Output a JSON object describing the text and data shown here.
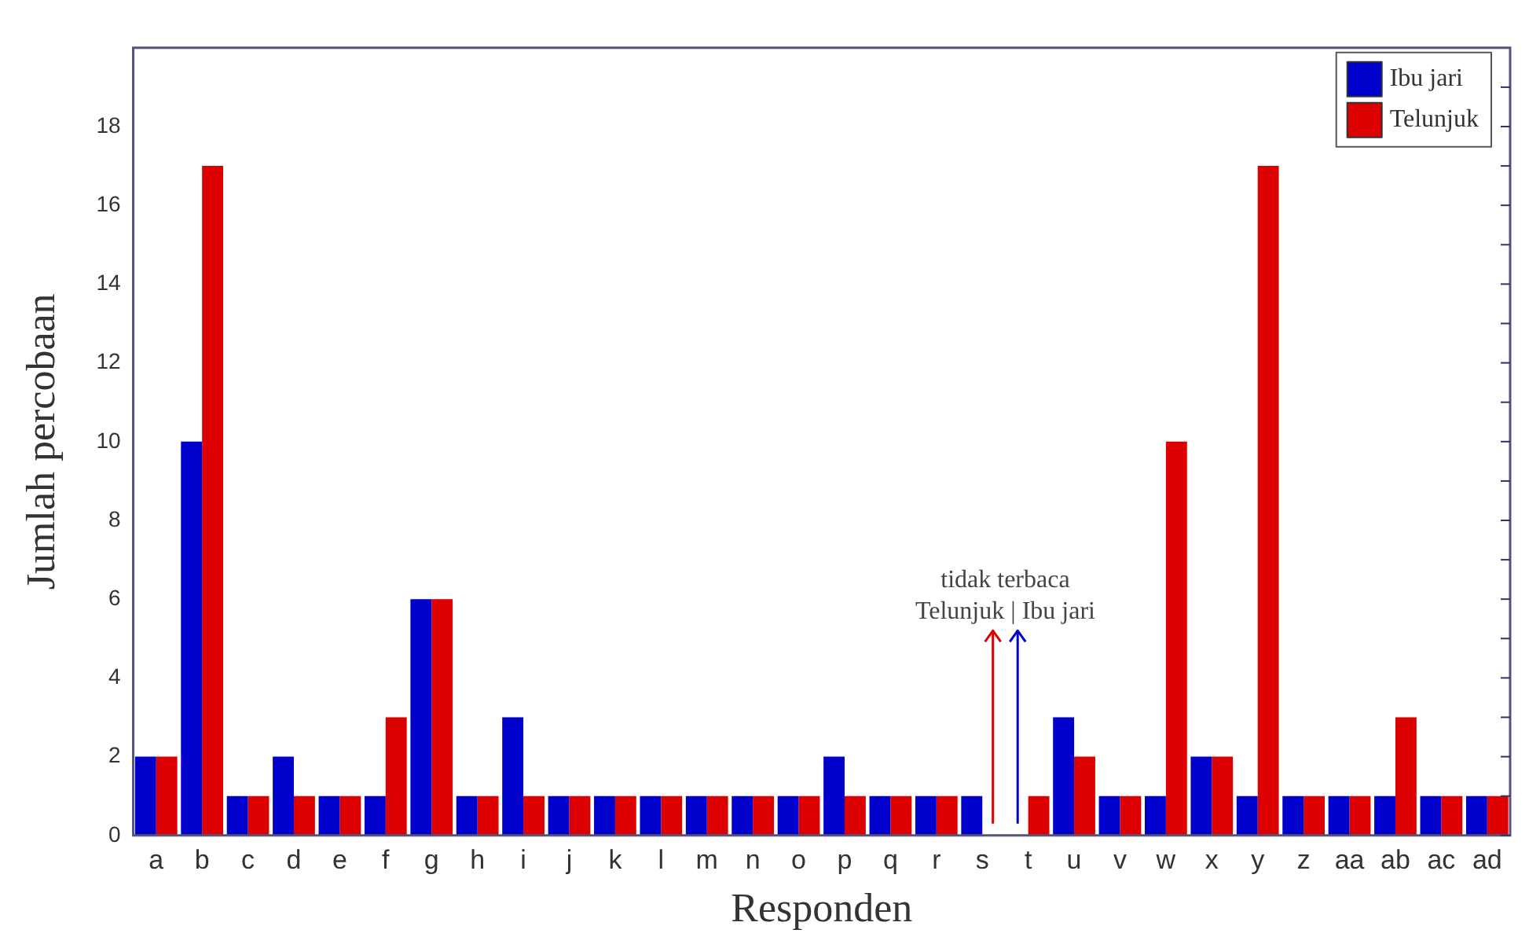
{
  "chart_data": {
    "type": "bar",
    "xlabel": "Responden",
    "ylabel": "Jumlah percobaan",
    "categories": [
      "a",
      "b",
      "c",
      "d",
      "e",
      "f",
      "g",
      "h",
      "i",
      "j",
      "k",
      "l",
      "m",
      "n",
      "o",
      "p",
      "q",
      "r",
      "s",
      "t",
      "u",
      "v",
      "w",
      "x",
      "y",
      "z",
      "aa",
      "ab",
      "ac",
      "ad"
    ],
    "series": [
      {
        "name": "Ibu jari",
        "color": "#0000cc",
        "values": [
          2,
          10,
          1,
          2,
          1,
          1,
          6,
          1,
          3,
          1,
          1,
          1,
          1,
          1,
          1,
          2,
          1,
          1,
          1,
          null,
          3,
          1,
          1,
          2,
          1,
          1,
          1,
          1,
          1,
          1
        ]
      },
      {
        "name": "Telunjuk",
        "color": "#dd0000",
        "values": [
          2,
          17,
          1,
          1,
          1,
          3,
          6,
          1,
          1,
          1,
          1,
          1,
          1,
          1,
          1,
          1,
          1,
          1,
          null,
          1,
          2,
          1,
          10,
          2,
          17,
          1,
          1,
          3,
          1,
          1
        ]
      }
    ],
    "ylim": [
      0,
      20
    ],
    "yticks": [
      0,
      {
        "value": 1,
        "label": null
      },
      2,
      {
        "value": 3,
        "label": null
      },
      4,
      {
        "value": 5,
        "label": null
      },
      6,
      {
        "value": 7,
        "label": null
      },
      8,
      {
        "value": 9,
        "label": null
      },
      10,
      {
        "value": 11,
        "label": null
      },
      12,
      {
        "value": 13,
        "label": null
      },
      14,
      {
        "value": 15,
        "label": null
      },
      16,
      {
        "value": 17,
        "label": null
      },
      18,
      {
        "value": 19,
        "label": null
      }
    ],
    "grid": false,
    "legend": "top right",
    "annotations": [
      "tidak terbaca",
      "Telunjuk | Ibu jari"
    ]
  }
}
